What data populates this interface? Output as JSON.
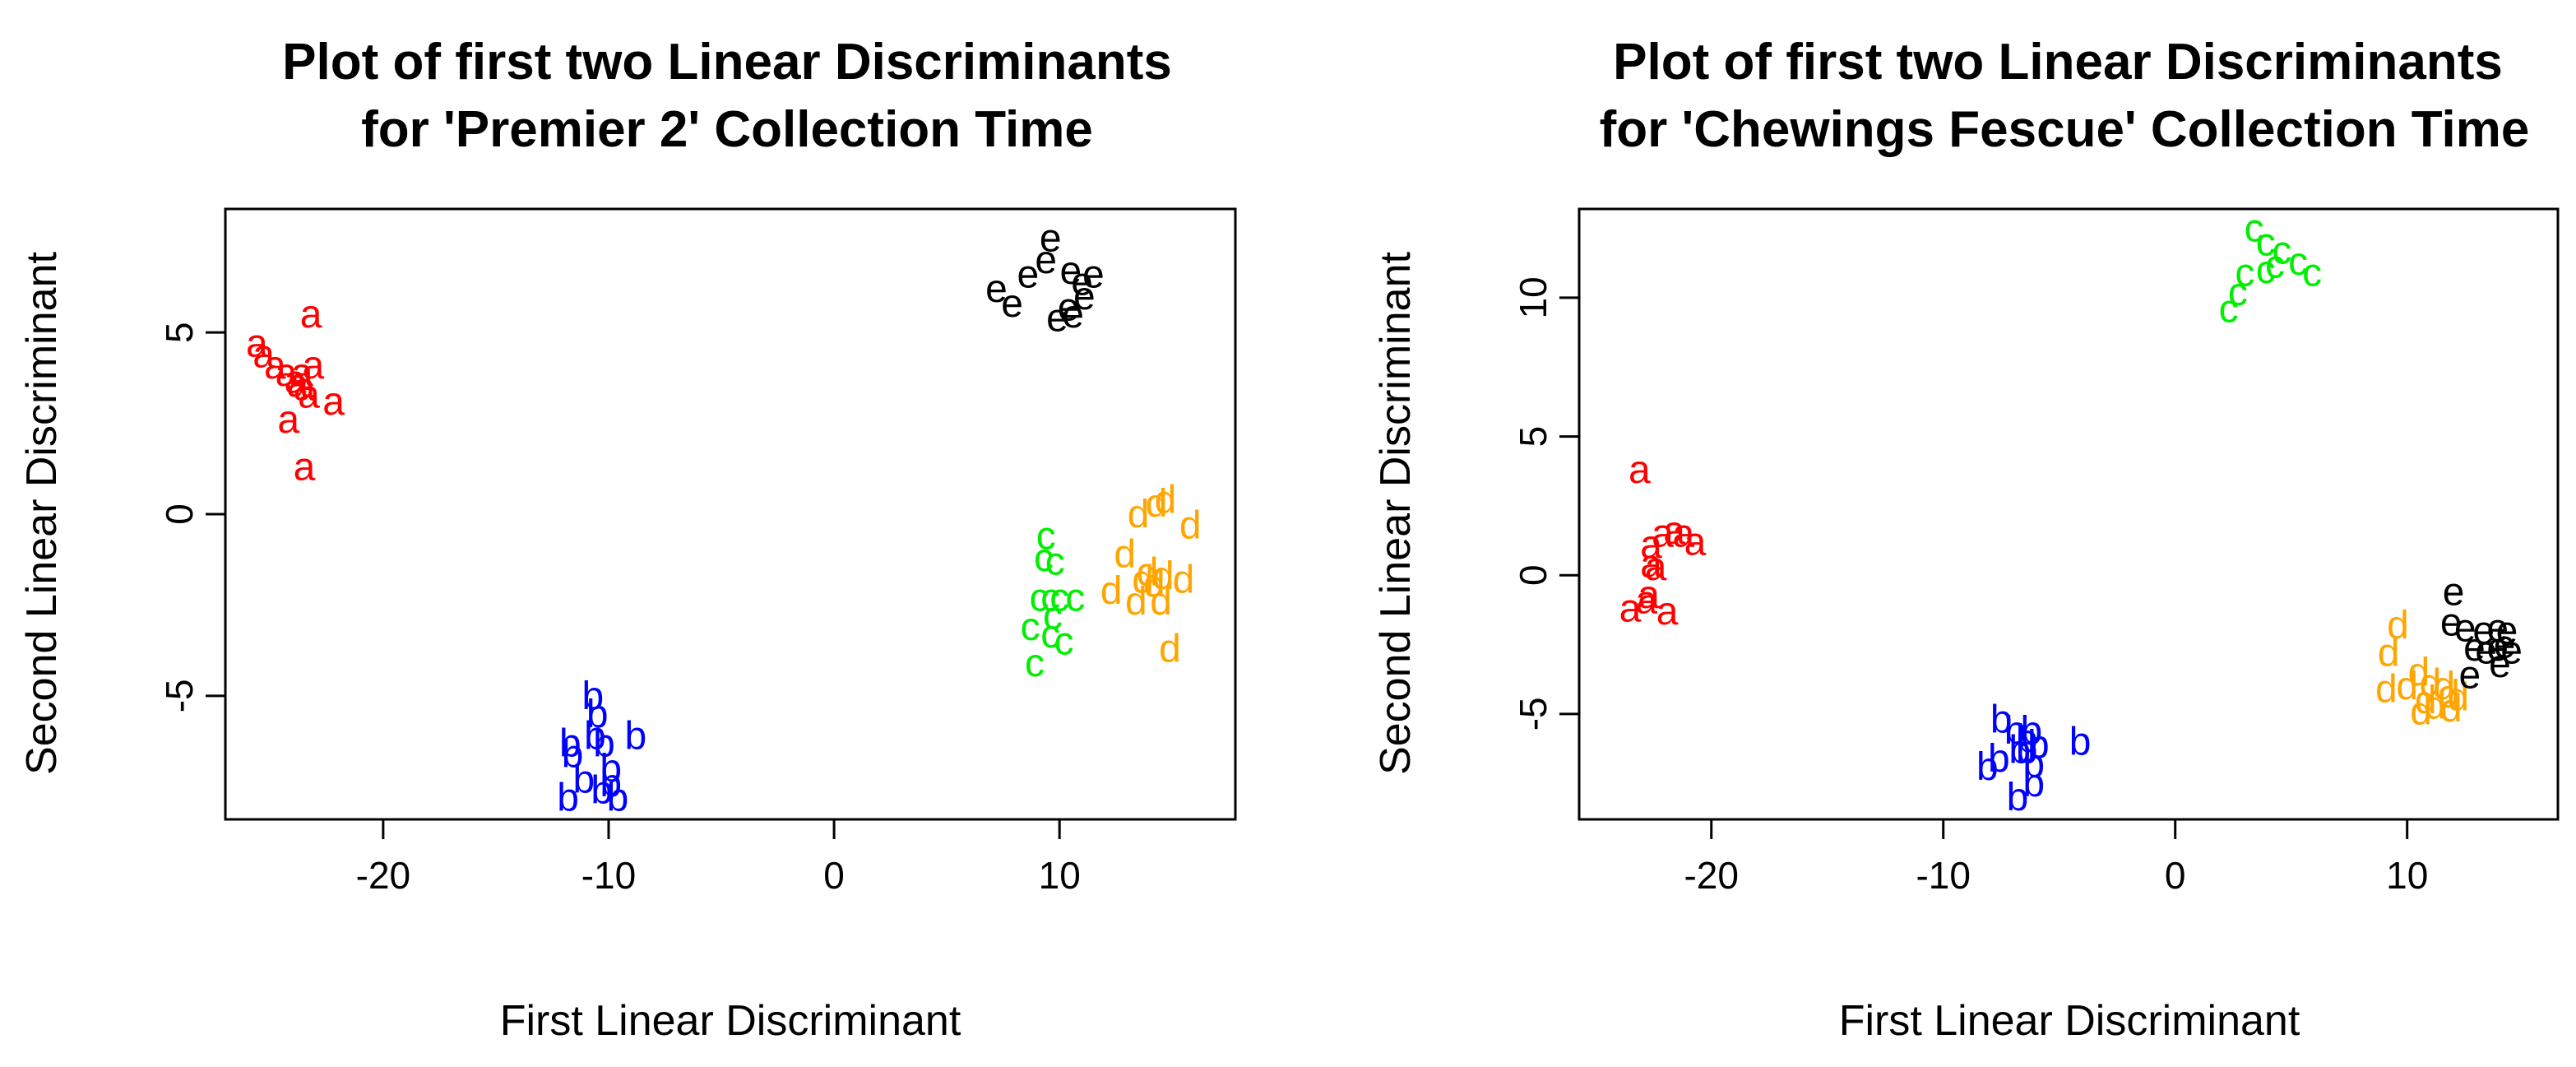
{
  "colors": {
    "a": "#ff0000",
    "b": "#0000ff",
    "c": "#00ee00",
    "d": "#ffa500",
    "e": "#000000",
    "frame": "#000000"
  },
  "chart_data": [
    {
      "type": "scatter",
      "title_line1": "Plot of first two Linear Discriminants",
      "title_line2": "for 'Premier 2' Collection Time",
      "xlabel": "First Linear Discriminant",
      "ylabel": "Second Linear Discriminant",
      "xlim": [
        -27,
        17.8
      ],
      "ylim": [
        -8.4,
        8.4
      ],
      "xticks": [
        -20,
        -10,
        0,
        10
      ],
      "yticks": [
        -5,
        0,
        5
      ],
      "grid": false,
      "series": [
        {
          "name": "a",
          "points": [
            [
              -25.6,
              4.7
            ],
            [
              -25.3,
              4.4
            ],
            [
              -24.8,
              4.1
            ],
            [
              -24.3,
              3.9
            ],
            [
              -23.9,
              3.7
            ],
            [
              -23.5,
              3.5
            ],
            [
              -23.6,
              3.9
            ],
            [
              -23.1,
              4.1
            ],
            [
              -23.2,
              5.5
            ],
            [
              -22.2,
              3.1
            ],
            [
              -24.2,
              2.6
            ],
            [
              -23.5,
              1.3
            ],
            [
              -23.8,
              3.6
            ],
            [
              -23.3,
              3.3
            ]
          ]
        },
        {
          "name": "b",
          "points": [
            [
              -10.7,
              -5.0
            ],
            [
              -10.5,
              -5.5
            ],
            [
              -11.7,
              -6.3
            ],
            [
              -11.6,
              -6.6
            ],
            [
              -10.2,
              -6.3
            ],
            [
              -9.9,
              -7.0
            ],
            [
              -9.9,
              -7.4
            ],
            [
              -11.1,
              -7.3
            ],
            [
              -10.3,
              -7.6
            ],
            [
              -9.6,
              -7.8
            ],
            [
              -11.8,
              -7.8
            ],
            [
              -8.8,
              -6.1
            ],
            [
              -10.6,
              -6.1
            ]
          ]
        },
        {
          "name": "c",
          "points": [
            [
              9.4,
              -0.6
            ],
            [
              9.3,
              -1.2
            ],
            [
              9.8,
              -1.3
            ],
            [
              9.1,
              -2.3
            ],
            [
              9.6,
              -2.3
            ],
            [
              10.0,
              -2.3
            ],
            [
              10.7,
              -2.3
            ],
            [
              8.7,
              -3.1
            ],
            [
              9.6,
              -3.3
            ],
            [
              10.2,
              -3.5
            ],
            [
              8.9,
              -4.1
            ],
            [
              9.7,
              -2.8
            ]
          ]
        },
        {
          "name": "d",
          "points": [
            [
              14.3,
              0.3
            ],
            [
              14.7,
              0.4
            ],
            [
              13.5,
              0.0
            ],
            [
              15.8,
              -0.3
            ],
            [
              12.9,
              -1.1
            ],
            [
              13.9,
              -1.6
            ],
            [
              14.2,
              -1.9
            ],
            [
              14.6,
              -1.7
            ],
            [
              15.5,
              -1.8
            ],
            [
              12.3,
              -2.1
            ],
            [
              13.4,
              -2.4
            ],
            [
              14.5,
              -2.4
            ],
            [
              14.9,
              -3.7
            ],
            [
              13.7,
              -1.8
            ]
          ]
        },
        {
          "name": "e",
          "points": [
            [
              9.6,
              7.6
            ],
            [
              9.4,
              7.0
            ],
            [
              8.6,
              6.6
            ],
            [
              10.5,
              6.7
            ],
            [
              11.0,
              6.4
            ],
            [
              11.5,
              6.6
            ],
            [
              7.2,
              6.2
            ],
            [
              11.1,
              6.0
            ],
            [
              10.4,
              5.7
            ],
            [
              7.9,
              5.8
            ],
            [
              10.6,
              5.5
            ],
            [
              9.9,
              5.4
            ]
          ]
        }
      ]
    },
    {
      "type": "scatter",
      "title_line1": "Plot of first two Linear Discriminants",
      "title_line2": "for 'Chewings Fescue' Collection Time",
      "xlabel": "First Linear Discriminant",
      "ylabel": "Second Linear Discriminant",
      "xlim": [
        -25.7,
        16.5
      ],
      "ylim": [
        -8.8,
        13.2
      ],
      "xticks": [
        -20,
        -10,
        0,
        10
      ],
      "yticks": [
        -5,
        0,
        5,
        10
      ],
      "grid": false,
      "series": [
        {
          "name": "a",
          "points": [
            [
              -23.1,
              3.8
            ],
            [
              -22.1,
              1.5
            ],
            [
              -21.6,
              1.6
            ],
            [
              -21.2,
              1.5
            ],
            [
              -22.6,
              1.1
            ],
            [
              -20.7,
              1.2
            ],
            [
              -22.6,
              0.4
            ],
            [
              -22.4,
              0.3
            ],
            [
              -22.7,
              -0.7
            ],
            [
              -22.8,
              -0.9
            ],
            [
              -23.5,
              -1.2
            ],
            [
              -21.9,
              -1.3
            ]
          ]
        },
        {
          "name": "b",
          "points": [
            [
              -7.5,
              -5.2
            ],
            [
              -6.9,
              -5.6
            ],
            [
              -6.2,
              -5.6
            ],
            [
              -6.7,
              -6.3
            ],
            [
              -6.4,
              -6.3
            ],
            [
              -5.9,
              -6.1
            ],
            [
              -6.1,
              -6.8
            ],
            [
              -7.6,
              -6.6
            ],
            [
              -8.1,
              -6.9
            ],
            [
              -6.1,
              -7.5
            ],
            [
              -6.8,
              -8.0
            ],
            [
              -4.1,
              -6.0
            ],
            [
              -6.4,
              -5.9
            ]
          ]
        },
        {
          "name": "c",
          "points": [
            [
              3.4,
              12.5
            ],
            [
              3.9,
              12.0
            ],
            [
              4.6,
              11.7
            ],
            [
              4.3,
              11.2
            ],
            [
              5.3,
              11.3
            ],
            [
              5.9,
              10.9
            ],
            [
              3.0,
              10.9
            ],
            [
              3.9,
              11.0
            ],
            [
              2.7,
              10.2
            ],
            [
              2.3,
              9.6
            ]
          ]
        },
        {
          "name": "d",
          "points": [
            [
              9.6,
              -1.8
            ],
            [
              9.2,
              -2.8
            ],
            [
              10.5,
              -3.5
            ],
            [
              11.0,
              -3.9
            ],
            [
              11.6,
              -4.0
            ],
            [
              9.1,
              -4.1
            ],
            [
              10.0,
              -4.0
            ],
            [
              10.8,
              -4.5
            ],
            [
              11.2,
              -4.7
            ],
            [
              11.8,
              -4.3
            ],
            [
              12.2,
              -4.4
            ],
            [
              10.6,
              -4.9
            ],
            [
              11.9,
              -4.8
            ]
          ]
        },
        {
          "name": "e",
          "points": [
            [
              12.0,
              -0.6
            ],
            [
              11.9,
              -1.7
            ],
            [
              12.5,
              -1.9
            ],
            [
              13.3,
              -2.0
            ],
            [
              13.9,
              -1.9
            ],
            [
              14.3,
              -2.0
            ],
            [
              12.9,
              -2.6
            ],
            [
              13.4,
              -2.7
            ],
            [
              13.9,
              -2.6
            ],
            [
              14.2,
              -2.5
            ],
            [
              14.5,
              -2.7
            ],
            [
              14.0,
              -3.2
            ],
            [
              12.7,
              -3.6
            ]
          ]
        }
      ]
    }
  ]
}
